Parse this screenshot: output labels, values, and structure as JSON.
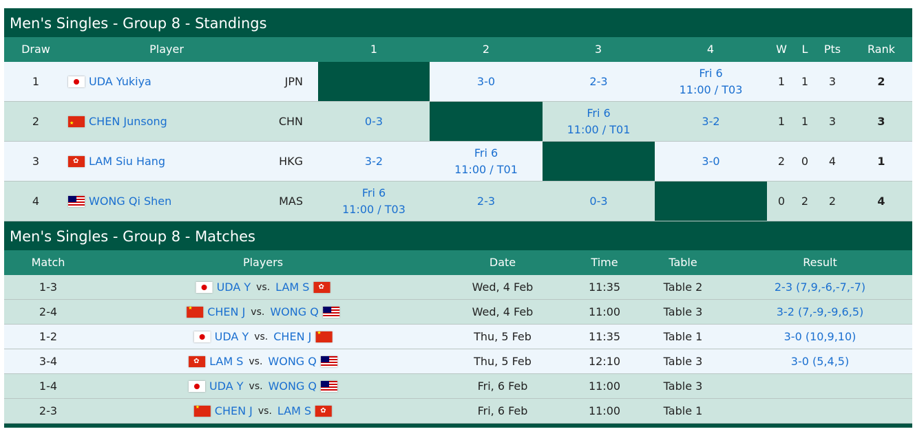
{
  "standings": {
    "title": "Men's Singles - Group 8 - Standings",
    "headers": {
      "draw": "Draw",
      "player": "Player",
      "c1": "1",
      "c2": "2",
      "c3": "3",
      "c4": "4",
      "w": "W",
      "l": "L",
      "pts": "Pts",
      "rank": "Rank"
    },
    "rows": [
      {
        "draw": "1",
        "flag": "jpn",
        "name": "UDA Yukiya",
        "country": "JPN",
        "r": [
          null,
          "3-0",
          "2-3",
          [
            "Fri 6",
            "11:00 / T03"
          ]
        ],
        "w": "1",
        "l": "1",
        "pts": "3",
        "rank": "2"
      },
      {
        "draw": "2",
        "flag": "chn",
        "name": "CHEN Junsong",
        "country": "CHN",
        "r": [
          "0-3",
          null,
          [
            "Fri 6",
            "11:00 / T01"
          ],
          "3-2"
        ],
        "w": "1",
        "l": "1",
        "pts": "3",
        "rank": "3"
      },
      {
        "draw": "3",
        "flag": "hkg",
        "name": "LAM Siu Hang",
        "country": "HKG",
        "r": [
          "3-2",
          [
            "Fri 6",
            "11:00 / T01"
          ],
          null,
          "3-0"
        ],
        "w": "2",
        "l": "0",
        "pts": "4",
        "rank": "1"
      },
      {
        "draw": "4",
        "flag": "mas",
        "name": "WONG Qi Shen",
        "country": "MAS",
        "r": [
          [
            "Fri 6",
            "11:00 / T03"
          ],
          "2-3",
          "0-3",
          null
        ],
        "w": "0",
        "l": "2",
        "pts": "2",
        "rank": "4"
      }
    ]
  },
  "matches": {
    "title": "Men's Singles - Group 8 - Matches",
    "headers": {
      "match": "Match",
      "players": "Players",
      "date": "Date",
      "time": "Time",
      "table": "Table",
      "result": "Result"
    },
    "vs": "vs.",
    "rows": [
      {
        "match": "1-3",
        "p1": "UDA Y",
        "f1": "jpn",
        "p2": "LAM S",
        "f2": "hkg",
        "date": "Wed, 4 Feb",
        "time": "11:35",
        "table": "Table 2",
        "result": "2-3 (7,9,-6,-7,-7)"
      },
      {
        "match": "2-4",
        "p1": "CHEN J",
        "f1": "chn",
        "p2": "WONG Q",
        "f2": "mas",
        "date": "Wed, 4 Feb",
        "time": "11:00",
        "table": "Table 3",
        "result": "3-2 (7,-9,-9,6,5)"
      },
      {
        "match": "1-2",
        "p1": "UDA Y",
        "f1": "jpn",
        "p2": "CHEN J",
        "f2": "chn",
        "date": "Thu, 5 Feb",
        "time": "11:35",
        "table": "Table 1",
        "result": "3-0 (10,9,10)"
      },
      {
        "match": "3-4",
        "p1": "LAM S",
        "f1": "hkg",
        "p2": "WONG Q",
        "f2": "mas",
        "date": "Thu, 5 Feb",
        "time": "12:10",
        "table": "Table 3",
        "result": "3-0 (5,4,5)"
      },
      {
        "match": "1-4",
        "p1": "UDA Y",
        "f1": "jpn",
        "p2": "WONG Q",
        "f2": "mas",
        "date": "Fri, 6 Feb",
        "time": "11:00",
        "table": "Table 3",
        "result": ""
      },
      {
        "match": "2-3",
        "p1": "CHEN J",
        "f1": "chn",
        "p2": "LAM S",
        "f2": "hkg",
        "date": "Fri, 6 Feb",
        "time": "11:00",
        "table": "Table 1",
        "result": ""
      }
    ]
  },
  "colors": {
    "dark": "#005543",
    "header": "#1f8571",
    "link": "#1a6fd0",
    "row_light": "#eef6fc",
    "row_green": "#cde5df"
  }
}
